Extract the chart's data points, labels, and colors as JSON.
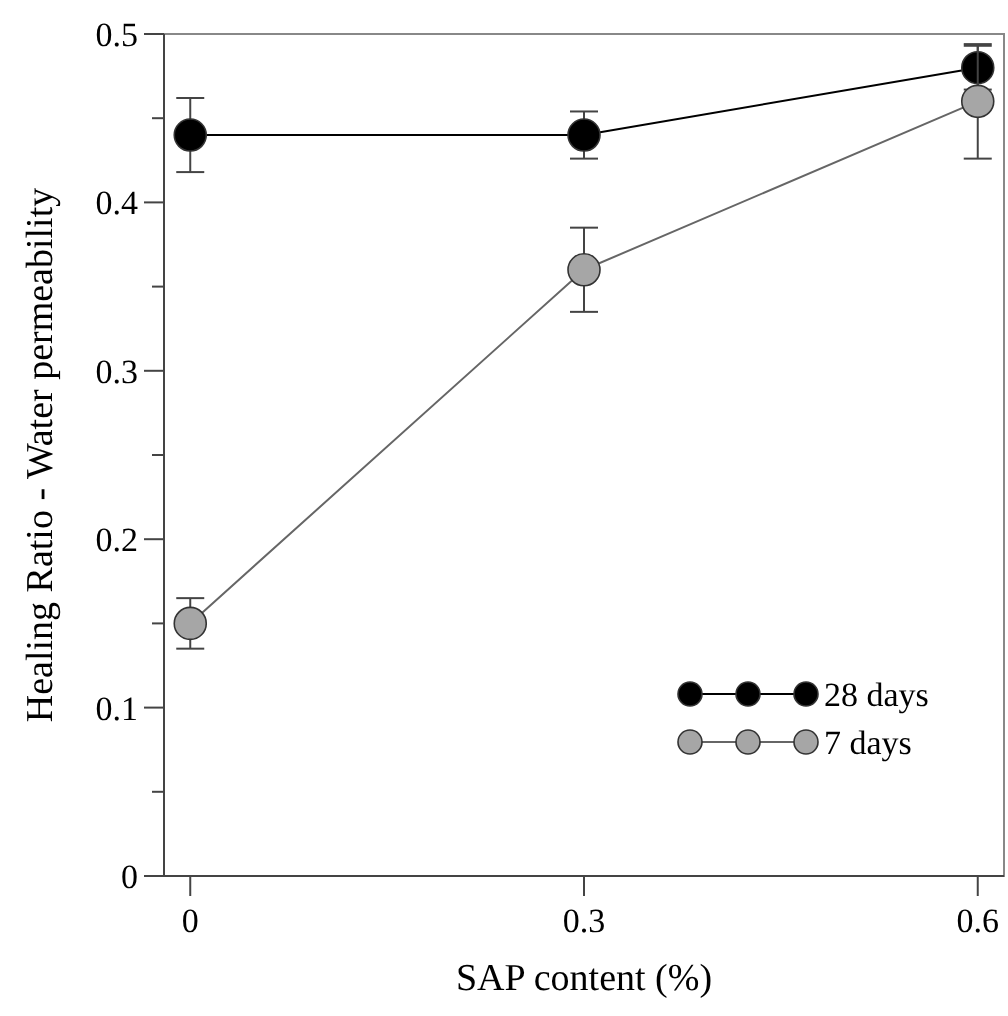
{
  "chart_data": {
    "type": "line",
    "xlabel": "SAP content (%)",
    "ylabel": "Healing Ratio - Water permeability",
    "x": [
      0,
      0.3,
      0.6
    ],
    "series": [
      {
        "name": "28 days",
        "color": "#000000",
        "values": [
          0.44,
          0.44,
          0.48
        ],
        "errors": [
          0.022,
          0.014,
          0.013
        ]
      },
      {
        "name": "7 days",
        "color": "#a6a6a6",
        "values": [
          0.15,
          0.36,
          0.46
        ],
        "errors": [
          0.015,
          0.025,
          0.034
        ]
      }
    ],
    "xlim": [
      -0.02,
      0.62
    ],
    "xticks": [
      0,
      0.3,
      0.6
    ],
    "ylim": [
      0,
      0.5
    ],
    "yticks": [
      0,
      {
        "value": 0.05,
        "label": null
      },
      0.1,
      {
        "value": 0.15,
        "label": null
      },
      0.2,
      {
        "value": 0.25,
        "label": null
      },
      0.3,
      {
        "value": 0.35,
        "label": null
      },
      0.4,
      {
        "value": 0.45,
        "label": null
      },
      0.5
    ],
    "marker": "circle",
    "legend": "bottom right",
    "grid": false
  }
}
